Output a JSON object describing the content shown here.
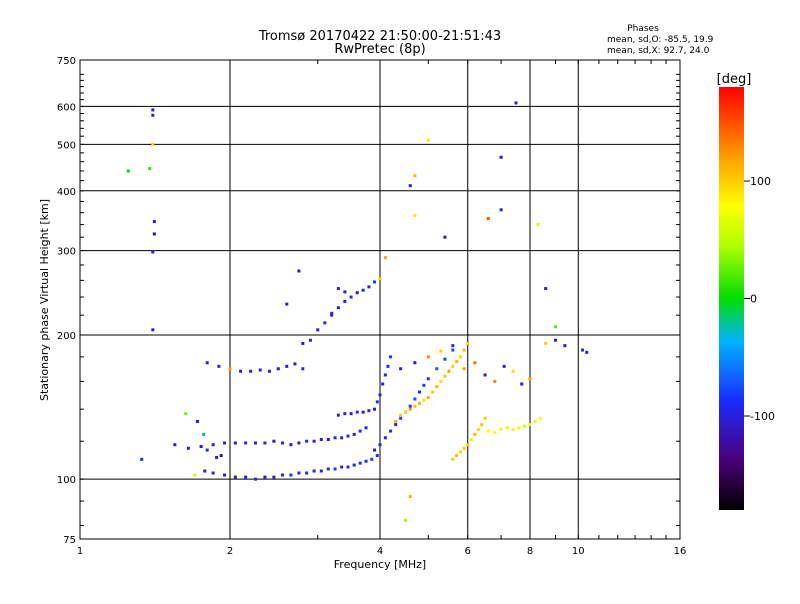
{
  "chart_data": {
    "type": "scatter",
    "title": "Tromsø 20170422 21:50:00-21:51:43",
    "subtitle": "RwPretec (8p)",
    "xlabel": "Frequency [MHz]",
    "ylabel": "Stationary phase Virtual Height [km]",
    "x_scale": "log",
    "y_scale": "log",
    "xlim": [
      1,
      16
    ],
    "ylim": [
      75,
      750
    ],
    "x_ticks": [
      1,
      2,
      4,
      6,
      8,
      10,
      16
    ],
    "y_ticks": [
      75,
      100,
      200,
      300,
      400,
      500,
      600,
      750
    ],
    "grid": true,
    "stats": {
      "heading": "Phases",
      "line_o": "mean, sd,O: -85.5, 19.9",
      "line_x": "mean, sd,X:  92.7, 24.0"
    },
    "colorbar": {
      "label": "[deg]",
      "range": [
        -180,
        180
      ],
      "ticks": [
        -100,
        0,
        100
      ],
      "placement": "right"
    },
    "color_encoding": "phase [deg]",
    "series": [
      {
        "name": "",
        "x": [
          1.4,
          1.4,
          1.41,
          1.41,
          1.4,
          1.4,
          1.4,
          1.38,
          1.25,
          1.63,
          1.72,
          1.77,
          1.8,
          1.92,
          1.88,
          1.7,
          1.33
        ],
        "y": [
          590,
          575,
          345,
          325,
          298,
          205,
          500,
          445,
          440,
          137,
          132,
          124,
          115,
          112,
          111,
          102,
          110
        ],
        "phase": [
          -110,
          -105,
          -100,
          -115,
          -95,
          -110,
          100,
          10,
          -5,
          30,
          -110,
          -20,
          -95,
          -115,
          -105,
          60,
          -90
        ]
      },
      {
        "name": "",
        "x": [
          1.78,
          1.85,
          1.95,
          2.05,
          2.15,
          2.25,
          2.35,
          2.45,
          2.55,
          2.65,
          2.75,
          2.85,
          2.95,
          3.05,
          3.15,
          3.25,
          3.35,
          3.45,
          3.55,
          3.65,
          3.75,
          3.85,
          3.95
        ],
        "y": [
          104,
          103,
          102,
          101,
          101,
          100,
          101,
          101,
          102,
          102,
          103,
          103,
          104,
          104,
          105,
          105,
          106,
          106,
          107,
          108,
          109,
          110,
          112
        ],
        "phase": [
          -110,
          -100,
          -105,
          -115,
          -100,
          -95,
          -105,
          -110,
          -100,
          -90,
          -95,
          -85,
          -100,
          -95,
          -90,
          -80,
          -95,
          -85,
          -100,
          -90,
          -95,
          -80,
          -90
        ]
      },
      {
        "name": "",
        "x": [
          1.55,
          1.65,
          1.75,
          1.85,
          1.95,
          2.05,
          2.15,
          2.25,
          2.35,
          2.45,
          2.55,
          2.65,
          2.75,
          2.85,
          2.95,
          3.05,
          3.15,
          3.25,
          3.35,
          3.45,
          3.55,
          3.65,
          3.75
        ],
        "y": [
          118,
          116,
          117,
          118,
          119,
          119,
          119,
          119,
          119,
          120,
          119,
          118,
          119,
          120,
          120,
          121,
          121,
          122,
          122,
          123,
          124,
          126,
          128
        ],
        "phase": [
          -110,
          -105,
          -115,
          -100,
          -105,
          -110,
          -95,
          -105,
          -100,
          -110,
          -95,
          -100,
          -105,
          -90,
          -100,
          -95,
          -105,
          -100,
          -90,
          -95,
          -100,
          -85,
          -95
        ]
      },
      {
        "name": "",
        "x": [
          1.8,
          1.9,
          2.0,
          2.1,
          2.2,
          2.3,
          2.4,
          2.5,
          2.6,
          2.7,
          2.8
        ],
        "y": [
          175,
          172,
          170,
          168,
          168,
          169,
          168,
          170,
          172,
          174,
          170
        ],
        "phase": [
          -105,
          -100,
          120,
          -110,
          -105,
          -100,
          -95,
          -110,
          -105,
          -100,
          -95
        ]
      },
      {
        "name": "",
        "x": [
          2.8,
          2.9,
          3.0,
          3.1,
          3.2,
          3.3,
          3.4,
          3.5,
          3.6,
          3.7,
          3.8,
          3.9,
          2.6,
          2.75,
          3.2,
          3.3,
          3.4
        ],
        "y": [
          192,
          195,
          205,
          212,
          220,
          228,
          235,
          240,
          245,
          248,
          252,
          258,
          232,
          272,
          222,
          250,
          246
        ],
        "phase": [
          -110,
          -100,
          -105,
          -95,
          -115,
          -100,
          -105,
          -90,
          -110,
          -95,
          -105,
          -80,
          -105,
          -110,
          -95,
          -100,
          -105
        ]
      },
      {
        "name": "",
        "x": [
          3.3,
          3.4,
          3.5,
          3.6,
          3.7,
          3.8,
          3.9,
          3.95,
          4.0,
          4.05,
          4.1,
          4.15,
          4.2
        ],
        "y": [
          136,
          137,
          137,
          138,
          138,
          139,
          140,
          145,
          150,
          158,
          165,
          172,
          180
        ],
        "phase": [
          -100,
          -95,
          -105,
          -90,
          -110,
          -95,
          -100,
          -85,
          -90,
          -100,
          -95,
          -90,
          -80
        ]
      },
      {
        "name": "",
        "x": [
          3.9,
          4.0,
          4.1,
          4.2,
          4.3,
          4.4,
          4.5,
          4.6,
          4.7,
          4.8,
          4.9,
          5.0,
          5.2,
          5.4,
          5.6
        ],
        "y": [
          115,
          118,
          122,
          126,
          130,
          134,
          138,
          142,
          147,
          152,
          157,
          162,
          170,
          178,
          186
        ],
        "phase": [
          -95,
          -90,
          -100,
          -85,
          -95,
          -80,
          -90,
          -85,
          -75,
          -90,
          -80,
          -85,
          -70,
          -80,
          -75
        ]
      },
      {
        "name": "",
        "x": [
          4.3,
          4.4,
          4.5,
          4.6,
          4.7,
          4.8,
          4.9,
          5.0,
          5.1,
          5.2,
          5.3,
          5.4,
          5.5,
          5.6,
          5.7,
          5.8,
          5.9,
          6.0
        ],
        "y": [
          132,
          136,
          138,
          140,
          142,
          144,
          146,
          148,
          152,
          156,
          160,
          164,
          168,
          172,
          176,
          180,
          186,
          192
        ],
        "phase": [
          110,
          100,
          95,
          120,
          105,
          110,
          90,
          115,
          100,
          110,
          95,
          105,
          120,
          100,
          110,
          95,
          105,
          100
        ]
      },
      {
        "name": "",
        "x": [
          5.6,
          5.7,
          5.8,
          5.9,
          6.0,
          6.1,
          6.2,
          6.3,
          6.4,
          6.5
        ],
        "y": [
          110,
          112,
          114,
          116,
          118,
          121,
          124,
          127,
          130,
          134
        ],
        "phase": [
          100,
          110,
          95,
          105,
          100,
          90,
          110,
          95,
          105,
          100
        ]
      },
      {
        "name": "",
        "x": [
          6.6,
          6.8,
          7.0,
          7.2,
          7.4,
          7.6,
          7.8,
          8.0,
          8.2,
          8.4
        ],
        "y": [
          126,
          125,
          127,
          128,
          127,
          128,
          129,
          130,
          132,
          134
        ],
        "phase": [
          80,
          75,
          70,
          65,
          70,
          75,
          60,
          70,
          65,
          70
        ]
      },
      {
        "name": "",
        "x": [
          4.4,
          4.7,
          5.0,
          5.3,
          5.6,
          5.9,
          6.2,
          6.5,
          6.8,
          7.1,
          7.4,
          7.7,
          8.0,
          8.6,
          9.0,
          9.4
        ],
        "y": [
          170,
          175,
          180,
          185,
          190,
          170,
          175,
          165,
          160,
          172,
          168,
          158,
          162,
          192,
          195,
          190
        ],
        "phase": [
          -100,
          -110,
          130,
          100,
          -95,
          120,
          140,
          -100,
          130,
          -105,
          95,
          -110,
          120,
          100,
          -100,
          -110
        ]
      },
      {
        "name": "",
        "x": [
          4.0,
          4.1,
          4.6,
          4.7,
          5.0,
          5.4,
          6.6,
          7.0,
          7.5,
          8.3,
          8.6,
          10.2,
          10.4,
          9.0,
          4.7,
          7.0,
          4.6,
          4.5
        ],
        "y": [
          262,
          290,
          410,
          430,
          510,
          320,
          350,
          470,
          610,
          340,
          250,
          186,
          184,
          208,
          355,
          365,
          92,
          82
        ],
        "phase": [
          100,
          120,
          -100,
          110,
          90,
          -110,
          150,
          -110,
          -100,
          60,
          -100,
          -90,
          -110,
          20,
          90,
          -95,
          110,
          40
        ]
      }
    ]
  }
}
